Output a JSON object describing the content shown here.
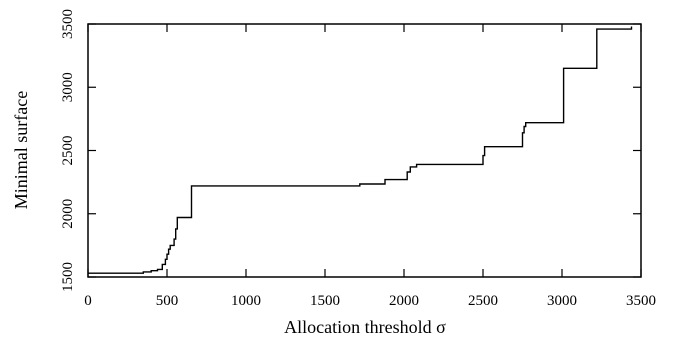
{
  "chart_data": {
    "type": "line",
    "line_style": "step",
    "title": "",
    "xlabel": "Allocation threshold σ",
    "ylabel": "Minimal surface",
    "xlim": [
      0,
      3500
    ],
    "ylim": [
      1500,
      3500
    ],
    "xticks": [
      0,
      500,
      1000,
      1500,
      2000,
      2500,
      3000,
      3500
    ],
    "yticks": [
      1500,
      2000,
      2500,
      3000,
      3500
    ],
    "grid": false,
    "series": [
      {
        "color": "#000000",
        "points": [
          [
            0,
            1530
          ],
          [
            350,
            1530
          ],
          [
            350,
            1540
          ],
          [
            400,
            1540
          ],
          [
            400,
            1550
          ],
          [
            440,
            1550
          ],
          [
            440,
            1560
          ],
          [
            470,
            1560
          ],
          [
            470,
            1600
          ],
          [
            490,
            1600
          ],
          [
            490,
            1640
          ],
          [
            500,
            1640
          ],
          [
            500,
            1680
          ],
          [
            510,
            1680
          ],
          [
            510,
            1720
          ],
          [
            520,
            1720
          ],
          [
            520,
            1750
          ],
          [
            545,
            1750
          ],
          [
            545,
            1800
          ],
          [
            555,
            1800
          ],
          [
            555,
            1880
          ],
          [
            565,
            1880
          ],
          [
            565,
            1970
          ],
          [
            655,
            1970
          ],
          [
            655,
            2220
          ],
          [
            1720,
            2220
          ],
          [
            1720,
            2235
          ],
          [
            1880,
            2235
          ],
          [
            1880,
            2270
          ],
          [
            2020,
            2270
          ],
          [
            2020,
            2330
          ],
          [
            2040,
            2330
          ],
          [
            2040,
            2370
          ],
          [
            2080,
            2370
          ],
          [
            2080,
            2390
          ],
          [
            2500,
            2390
          ],
          [
            2500,
            2460
          ],
          [
            2510,
            2460
          ],
          [
            2510,
            2530
          ],
          [
            2750,
            2530
          ],
          [
            2750,
            2640
          ],
          [
            2760,
            2640
          ],
          [
            2760,
            2690
          ],
          [
            2770,
            2690
          ],
          [
            2770,
            2720
          ],
          [
            3010,
            2720
          ],
          [
            3010,
            3150
          ],
          [
            3220,
            3150
          ],
          [
            3220,
            3460
          ],
          [
            3440,
            3460
          ],
          [
            3440,
            3480
          ]
        ]
      }
    ]
  }
}
